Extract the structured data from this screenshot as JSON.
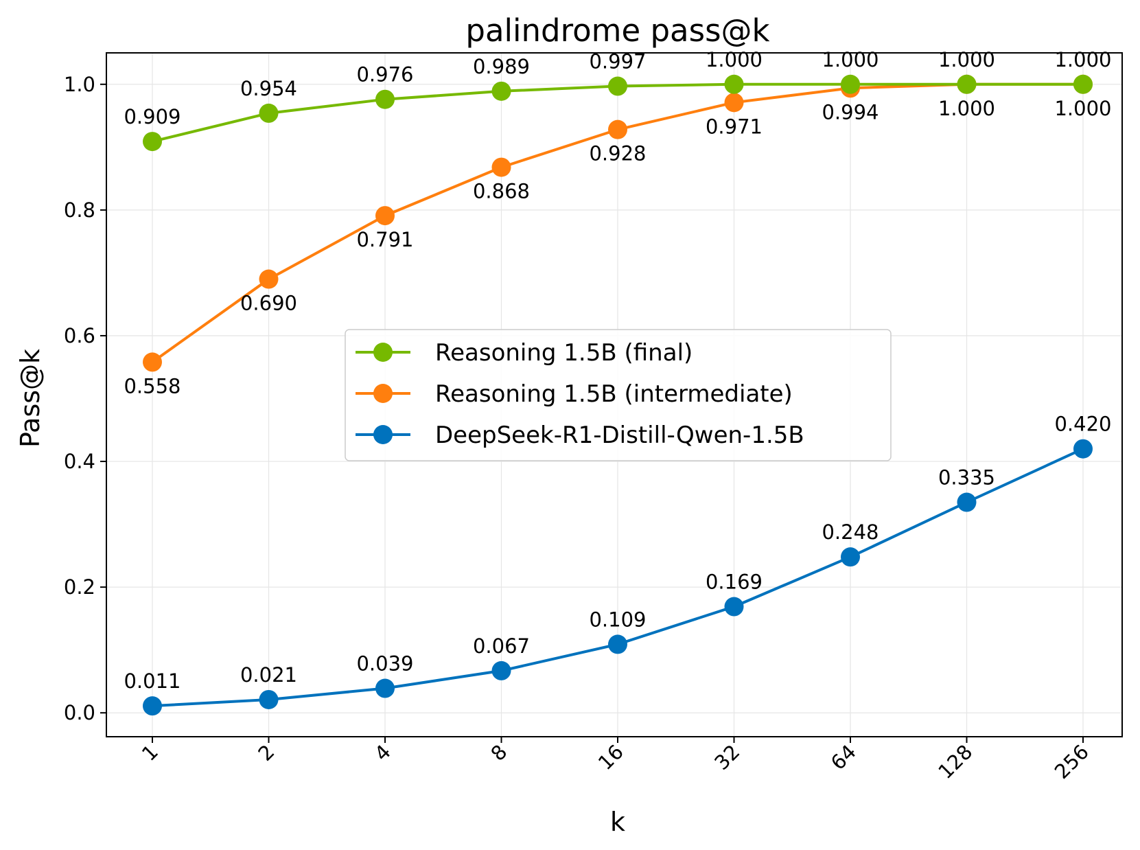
{
  "chart_data": {
    "type": "line",
    "title": "palindrome pass@k",
    "xlabel": "k",
    "ylabel": "Pass@k",
    "categories": [
      "1",
      "2",
      "4",
      "8",
      "16",
      "32",
      "64",
      "128",
      "256"
    ],
    "ylim": [
      -0.038,
      1.05
    ],
    "yticks": [
      0.0,
      0.2,
      0.4,
      0.6,
      0.8,
      1.0
    ],
    "ytick_labels": [
      "0.0",
      "0.2",
      "0.4",
      "0.6",
      "0.8",
      "1.0"
    ],
    "grid": true,
    "legend_position": "center",
    "series": [
      {
        "name": "Reasoning 1.5B (final)",
        "color": "#76b900",
        "label_position": "above",
        "values": [
          0.909,
          0.954,
          0.976,
          0.989,
          0.997,
          1.0,
          1.0,
          1.0,
          1.0
        ],
        "labels": [
          "0.909",
          "0.954",
          "0.976",
          "0.989",
          "0.997",
          "1.000",
          "1.000",
          "1.000",
          "1.000"
        ]
      },
      {
        "name": "Reasoning 1.5B (intermediate)",
        "color": "#ff7f0e",
        "label_position": "below",
        "values": [
          0.558,
          0.69,
          0.791,
          0.868,
          0.928,
          0.971,
          0.994,
          1.0,
          1.0
        ],
        "labels": [
          "0.558",
          "0.690",
          "0.791",
          "0.868",
          "0.928",
          "0.971",
          "0.994",
          "1.000",
          "1.000"
        ]
      },
      {
        "name": "DeepSeek-R1-Distill-Qwen-1.5B",
        "color": "#0072bd",
        "label_position": "above",
        "values": [
          0.011,
          0.021,
          0.039,
          0.067,
          0.109,
          0.169,
          0.248,
          0.335,
          0.42
        ],
        "labels": [
          "0.011",
          "0.021",
          "0.039",
          "0.067",
          "0.109",
          "0.169",
          "0.248",
          "0.335",
          "0.420"
        ]
      }
    ]
  }
}
